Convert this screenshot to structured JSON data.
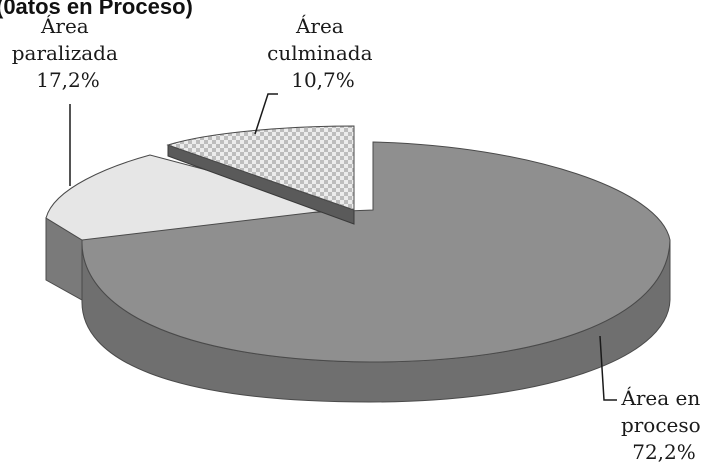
{
  "chart_data": {
    "type": "pie",
    "title_fragment": "(0atos en Proceso)",
    "slices": [
      {
        "label_lines": [
          "Área en",
          "proceso",
          "72,2%"
        ],
        "value": 72.2,
        "color": "#8f8f8f",
        "side": "#6f6f6f",
        "pattern": "none"
      },
      {
        "label_lines": [
          "Área",
          "paralizada",
          "17,2%"
        ],
        "value": 17.2,
        "color": "#e6e6e6",
        "side": "#7a7a7a",
        "pattern": "none"
      },
      {
        "label_lines": [
          "Área",
          "culminada",
          "10,7%"
        ],
        "value": 10.7,
        "color": "#dcdcdc",
        "side": "#5a5a5a",
        "pattern": "checker"
      }
    ]
  }
}
